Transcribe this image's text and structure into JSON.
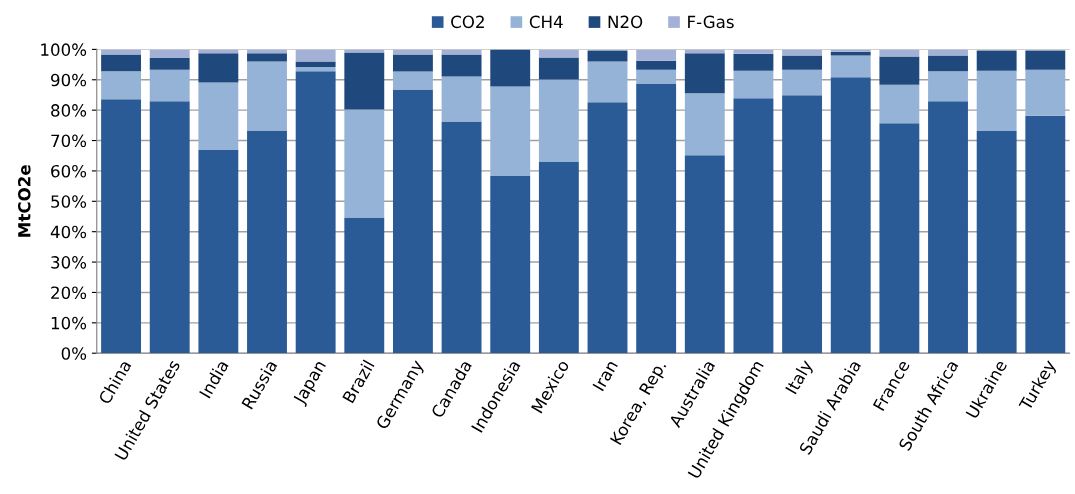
{
  "chart_data": {
    "type": "bar",
    "stacked": true,
    "ylabel": "MtCO2e",
    "categories": [
      "China",
      "United States",
      "India",
      "Russia",
      "Japan",
      "Brazil",
      "Germany",
      "Canada",
      "Indonesia",
      "Mexico",
      "Iran",
      "Korea, Rep.",
      "Australia",
      "United Kingdom",
      "Italy",
      "Saudi Arabia",
      "France",
      "South Africa",
      "Ukraine",
      "Turkey"
    ],
    "series": [
      {
        "name": "CO2",
        "color": "#2a5b96",
        "values": [
          83.6,
          82.9,
          66.9,
          73.3,
          92.8,
          44.7,
          86.8,
          76.3,
          58.3,
          62.9,
          82.6,
          88.8,
          65.2,
          83.9,
          84.9,
          90.8,
          75.7,
          82.9,
          73.1,
          78.2
        ]
      },
      {
        "name": "CH4",
        "color": "#95b3d7",
        "values": [
          9.2,
          10.4,
          22.2,
          22.7,
          1.4,
          35.5,
          5.9,
          14.8,
          29.5,
          27.2,
          13.4,
          4.5,
          20.4,
          9.1,
          8.4,
          7.2,
          12.7,
          9.9,
          19.9,
          15.1
        ]
      },
      {
        "name": "N2O",
        "color": "#1f497d",
        "values": [
          5.5,
          3.9,
          9.6,
          2.7,
          1.8,
          18.8,
          5.6,
          7.2,
          12.2,
          7.2,
          3.6,
          3.0,
          13.1,
          5.6,
          4.7,
          1.2,
          9.3,
          5.2,
          6.6,
          6.3
        ]
      },
      {
        "name": "F-Gas",
        "color": "#a3b1d6",
        "values": [
          1.7,
          2.8,
          1.3,
          1.3,
          4.0,
          1.0,
          1.7,
          1.7,
          0,
          2.7,
          null,
          3.7,
          1.3,
          1.4,
          2.0,
          0.8,
          2.3,
          2.0,
          null,
          null
        ]
      }
    ],
    "ylim": [
      0,
      100
    ],
    "yticks": [
      {
        "value": 0,
        "label": "0%"
      },
      {
        "value": 10,
        "label": "10%"
      },
      {
        "value": 20,
        "label": "20%"
      },
      {
        "value": 30,
        "label": "30%"
      },
      {
        "value": 40,
        "label": "40%"
      },
      {
        "value": 50,
        "label": "50%"
      },
      {
        "value": 60,
        "label": "60%"
      },
      {
        "value": 70,
        "label": "70%"
      },
      {
        "value": 80,
        "label": "80%"
      },
      {
        "value": 90,
        "label": "90%"
      },
      {
        "value": 100,
        "label": "100%"
      }
    ],
    "grid": "y",
    "legend": "top"
  }
}
